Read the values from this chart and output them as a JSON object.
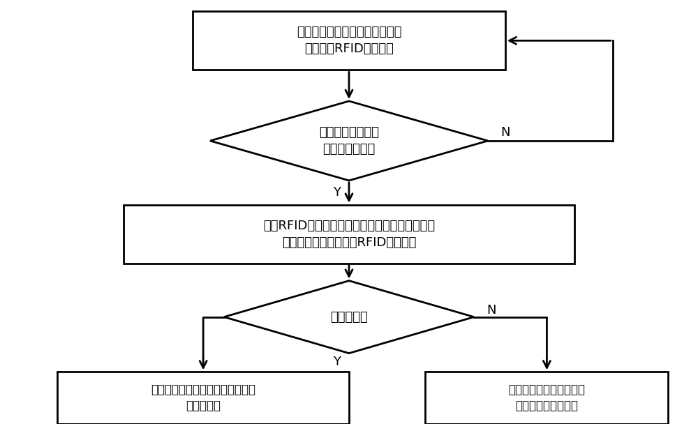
{
  "background_color": "#ffffff",
  "text_color": "#000000",
  "box1_label_line1": "在被检测工件的待检测裂纹位置",
  "box1_label_line2": "安装易碎RFID电子标签",
  "diamond1_label_line1": "需要对被检测工件",
  "diamond1_label_line2": "进行裂纹检测？",
  "box2_label_line1": "采用RFID电子标签阅读器读取被检测工件的待检",
  "box2_label_line2": "测裂纹位置安装的易碎RFID电子标签",
  "diamond2_label": "读取成功？",
  "box3_label_line1": "判定被检测工件的待检测裂纹位置",
  "box3_label_line2": "未产生裂纹",
  "box4_label_line1": "判定被检测工件的待检测",
  "box4_label_line2": "裂纹位置已产生裂纹",
  "label_Y": "Y",
  "label_N": "N",
  "font_size": 13,
  "lw": 2.0
}
